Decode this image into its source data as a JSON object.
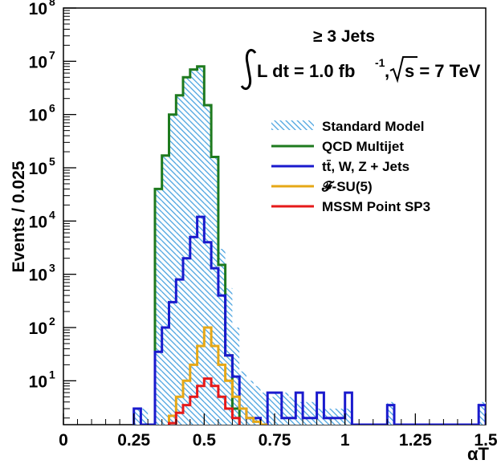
{
  "chart_data": {
    "type": "line",
    "xlabel": "αT",
    "ylabel": "Events / 0.025",
    "xlim": [
      0,
      1.5
    ],
    "ylim": [
      1.5,
      100000000
    ],
    "yscale": "log",
    "bin_width": 0.025,
    "grid": false,
    "legend_placement": "top-right",
    "x_ticks": [
      {
        "value": 0,
        "label": "0"
      },
      {
        "value": 0.25,
        "label": "0.25"
      },
      {
        "value": 0.5,
        "label": "0.5"
      },
      {
        "value": 0.75,
        "label": "0.75"
      },
      {
        "value": 1,
        "label": "1"
      },
      {
        "value": 1.25,
        "label": "1.25"
      },
      {
        "value": 1.5,
        "label": "1.5"
      }
    ],
    "y_ticks": [
      {
        "value": 10,
        "base": "10",
        "exp": "1"
      },
      {
        "value": 100,
        "base": "10",
        "exp": "2"
      },
      {
        "value": 1000,
        "base": "10",
        "exp": "3"
      },
      {
        "value": 10000,
        "base": "10",
        "exp": "4"
      },
      {
        "value": 100000,
        "base": "10",
        "exp": "5"
      },
      {
        "value": 1000000,
        "base": "10",
        "exp": "6"
      },
      {
        "value": 10000000,
        "base": "10",
        "exp": "7"
      },
      {
        "value": 100000000,
        "base": "10",
        "exp": "8"
      }
    ],
    "annotations": {
      "jets": "≥ 3 Jets",
      "lumi_prefix": "L dt = 1.0 fb",
      "lumi_exp": "-1",
      "lumi_sep": ",",
      "sqrt_s": "s = 7 TeV"
    },
    "series": [
      {
        "name": "Standard Model",
        "color": "#5aa9e6",
        "style": "hatched-band",
        "x_start": [
          0.25,
          0.275,
          0.325,
          0.35,
          0.375,
          0.4,
          0.425,
          0.45,
          0.475,
          0.5,
          0.525,
          0.55,
          0.575,
          0.6,
          0.625,
          0.65,
          0.675,
          0.7,
          0.725,
          0.75,
          0.775,
          0.8,
          0.825,
          0.85,
          0.875,
          0.9,
          0.925,
          0.95,
          0.975,
          1.0,
          1.15,
          1.475
        ],
        "values": [
          3,
          3,
          40000,
          170000,
          1000000,
          2300000,
          5000000,
          7000000,
          8000000,
          1500000,
          160000,
          3000,
          550,
          100,
          15,
          10,
          8,
          6,
          5,
          6,
          6,
          5,
          4,
          4,
          4,
          3,
          3,
          3,
          3,
          3,
          4,
          4
        ]
      },
      {
        "name": "QCD Multijet",
        "color": "#1e7a1e",
        "style": "step",
        "x_start": [
          0.325,
          0.35,
          0.375,
          0.4,
          0.425,
          0.45,
          0.475,
          0.5,
          0.525,
          0.55,
          0.575,
          0.6
        ],
        "values": [
          40000,
          170000,
          1000000,
          2300000,
          5000000,
          7000000,
          8000000,
          1500000,
          160000,
          1500,
          30,
          3
        ]
      },
      {
        "name": "tt̄, W, Z + Jets",
        "color": "#1a1acd",
        "style": "step",
        "x_start": [
          0.25,
          0.275,
          0.3,
          0.325,
          0.35,
          0.375,
          0.4,
          0.425,
          0.45,
          0.475,
          0.5,
          0.525,
          0.55,
          0.575,
          0.6,
          0.625,
          0.65,
          0.675,
          0.7,
          0.725,
          0.75,
          0.775,
          0.8,
          0.825,
          0.85,
          0.875,
          0.9,
          0.925,
          0.95,
          0.975,
          1.0,
          1.025,
          1.15,
          1.175,
          1.475
        ],
        "values": [
          3,
          1.5,
          1.5,
          35,
          100,
          300,
          800,
          2000,
          5000,
          12000,
          4000,
          1300,
          400,
          30,
          12,
          3,
          2,
          2,
          1.5,
          6,
          6,
          2,
          2,
          6,
          2,
          2,
          6,
          2,
          2,
          2,
          6,
          1.5,
          3.5,
          1.5,
          3.5
        ]
      },
      {
        "name": "𝓕-SU(5)",
        "color": "#e6a817",
        "style": "step",
        "x_start": [
          0.375,
          0.4,
          0.425,
          0.45,
          0.475,
          0.5,
          0.525,
          0.55,
          0.575,
          0.6,
          0.625,
          0.65,
          0.675,
          0.7
        ],
        "values": [
          2.2,
          5,
          10,
          20,
          45,
          100,
          45,
          20,
          10,
          5,
          3,
          2,
          1.7,
          1.5
        ]
      },
      {
        "name": "MSSM Point SP3",
        "color": "#e61a1a",
        "style": "step",
        "x_start": [
          0.375,
          0.4,
          0.425,
          0.45,
          0.475,
          0.5,
          0.525,
          0.55,
          0.575,
          0.6
        ],
        "values": [
          1.6,
          2.5,
          3.5,
          5,
          8,
          11,
          8,
          5,
          3,
          2
        ]
      }
    ]
  }
}
